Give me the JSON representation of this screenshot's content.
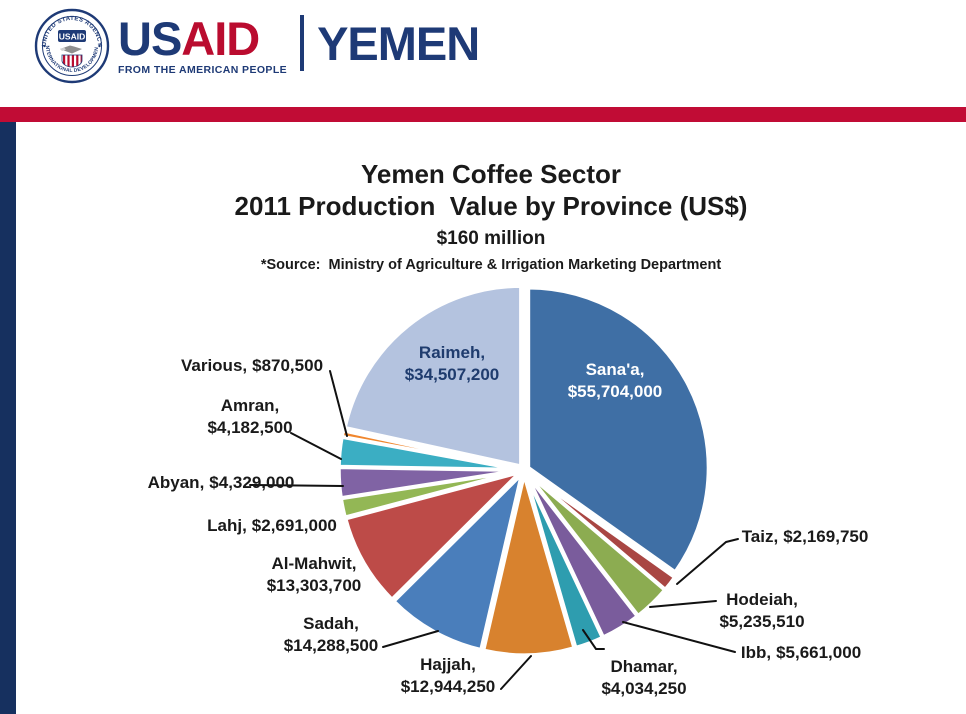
{
  "header": {
    "seal": {
      "ring_top": "UNITED STATES AGENCY",
      "ring_bottom": "INTERNATIONAL DEVELOPMENT",
      "badge": "USAID"
    },
    "wordmark": {
      "us": "US",
      "aid": "AID"
    },
    "tagline": "FROM THE AMERICAN PEOPLE",
    "region": "YEMEN"
  },
  "title": {
    "line1": "Yemen Coffee Sector",
    "line2": "2011 Production  Value by Province (US$)",
    "line3": "$160 million",
    "source": "*Source:  Ministry of Agriculture & Irrigation Marketing Department"
  },
  "colors": {
    "navy": "#1E3A76",
    "usaid_red": "#BA0C2F",
    "bar_red": "#C10C35",
    "sidebar_navy": "#16305F",
    "label_text": "#1A1A1A",
    "inside_label_sanaa": "#FFFFFF",
    "inside_label_raimeh": "#1F3C6E"
  },
  "chart_data": {
    "type": "pie",
    "title": "Yemen Coffee Sector 2011 Production Value by Province (US$)",
    "total_label": "$160 million",
    "total_value_usd": 159921160,
    "source": "*Source:  Ministry of Agriculture & Irrigation Marketing Department",
    "direction": "clockwise",
    "start_angle_deg": 0,
    "legend": "none",
    "slices": [
      {
        "province": "Sana'a",
        "value": 55704000,
        "label_name": "Sana'a,",
        "label_value": "$55,704,000",
        "color": "#3F6FA5",
        "label_placement": "inside"
      },
      {
        "province": "Taiz",
        "value": 2169750,
        "label_name": "Taiz,",
        "label_value": "$2,169,750",
        "color": "#A94643",
        "label_placement": "outside"
      },
      {
        "province": "Hodeiah",
        "value": 5235510,
        "label_name": "Hodeiah,",
        "label_value": "$5,235,510",
        "color": "#8CAC51",
        "label_placement": "outside"
      },
      {
        "province": "Ibb",
        "value": 5661000,
        "label_name": "Ibb,",
        "label_value": "$5,661,000",
        "color": "#7A5C9C",
        "label_placement": "outside"
      },
      {
        "province": "Dhamar",
        "value": 4034250,
        "label_name": "Dhamar,",
        "label_value": "$4,034,250",
        "color": "#2E9DAF",
        "label_placement": "outside"
      },
      {
        "province": "Hajjah",
        "value": 12944250,
        "label_name": "Hajjah,",
        "label_value": "$12,944,250",
        "color": "#D8822E",
        "label_placement": "outside"
      },
      {
        "province": "Sadah",
        "value": 14288500,
        "label_name": "Sadah,",
        "label_value": "$14,288,500",
        "color": "#4A7EBB",
        "label_placement": "outside"
      },
      {
        "province": "Al-Mahwit",
        "value": 13303700,
        "label_name": "Al-Mahwit,",
        "label_value": "$13,303,700",
        "color": "#BD4B48",
        "label_placement": "outside"
      },
      {
        "province": "Lahj",
        "value": 2691000,
        "label_name": "Lahj,",
        "label_value": "$2,691,000",
        "color": "#93B755",
        "label_placement": "outside"
      },
      {
        "province": "Abyan",
        "value": 4329000,
        "label_name": "Abyan,",
        "label_value": "$4,329,000",
        "color": "#8063A4",
        "label_placement": "outside"
      },
      {
        "province": "Amran",
        "value": 4182500,
        "label_name": "Amran,",
        "label_value": "$4,182,500",
        "color": "#3BAEC3",
        "label_placement": "outside"
      },
      {
        "province": "Various",
        "value": 870500,
        "label_name": "Various,",
        "label_value": "$870,500",
        "color": "#F0862D",
        "label_placement": "outside"
      },
      {
        "province": "Raimeh",
        "value": 34507200,
        "label_name": "Raimeh,",
        "label_value": "$34,507,200",
        "color": "#B4C3DF",
        "label_placement": "inside"
      }
    ]
  }
}
